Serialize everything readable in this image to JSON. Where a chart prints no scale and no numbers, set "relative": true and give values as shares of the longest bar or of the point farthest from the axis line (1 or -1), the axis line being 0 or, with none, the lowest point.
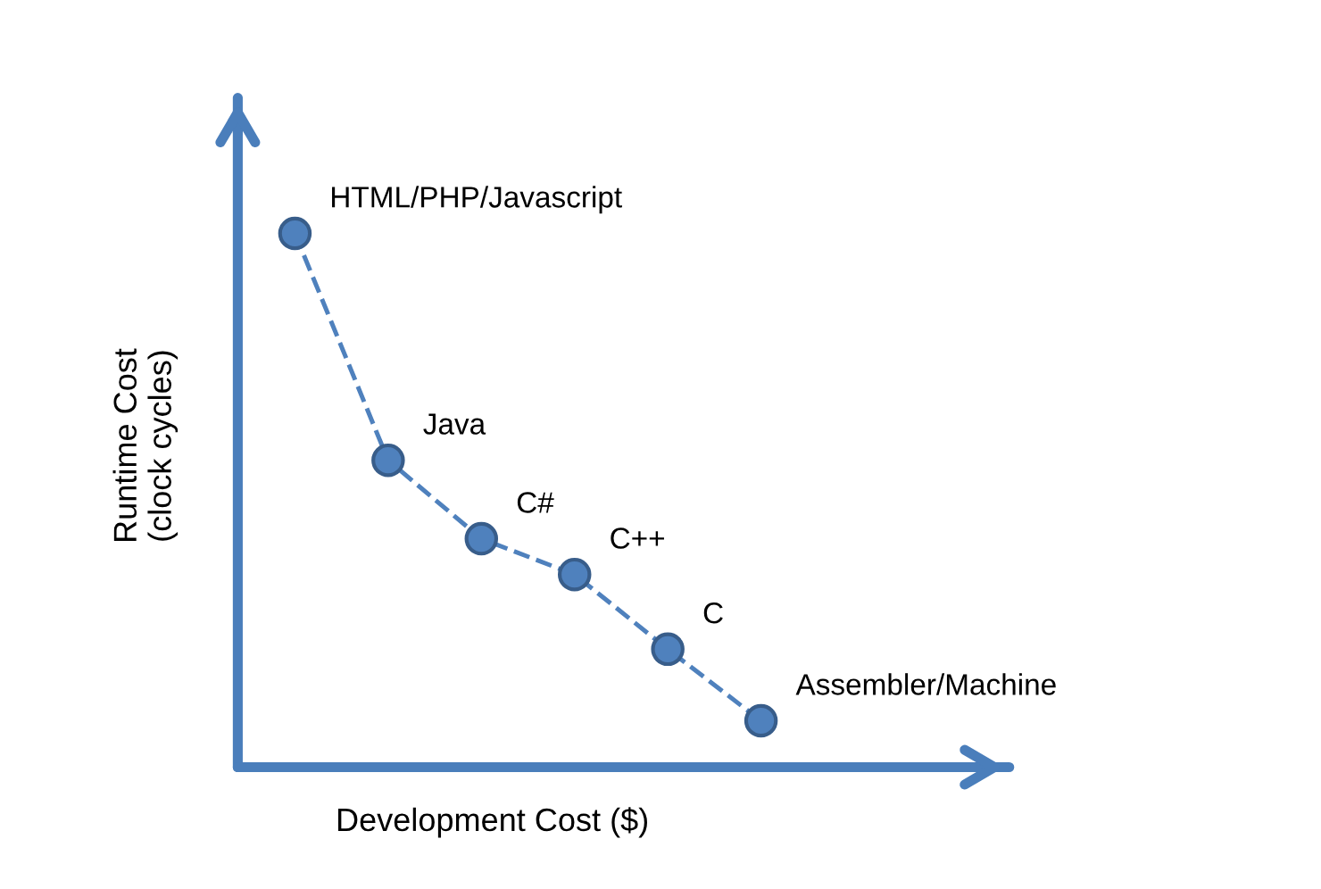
{
  "chart_data": {
    "type": "line",
    "relative": true,
    "xlabel": "Development Cost ($)",
    "ylabel": "Runtime Cost\n(clock cycles)",
    "categories": [
      null,
      null,
      null,
      null,
      null,
      null
    ],
    "series": [
      {
        "color": "#4f81bd",
        "values": [
          1,
          0.575,
          0.428,
          0.361,
          0.221,
          0.087
        ]
      }
    ],
    "marker": "circle",
    "line_style": "dashed",
    "annotations": [
      "HTML/PHP/Javascript",
      "Java",
      "C#",
      "C++",
      "C",
      "Assembler/Machine"
    ]
  }
}
